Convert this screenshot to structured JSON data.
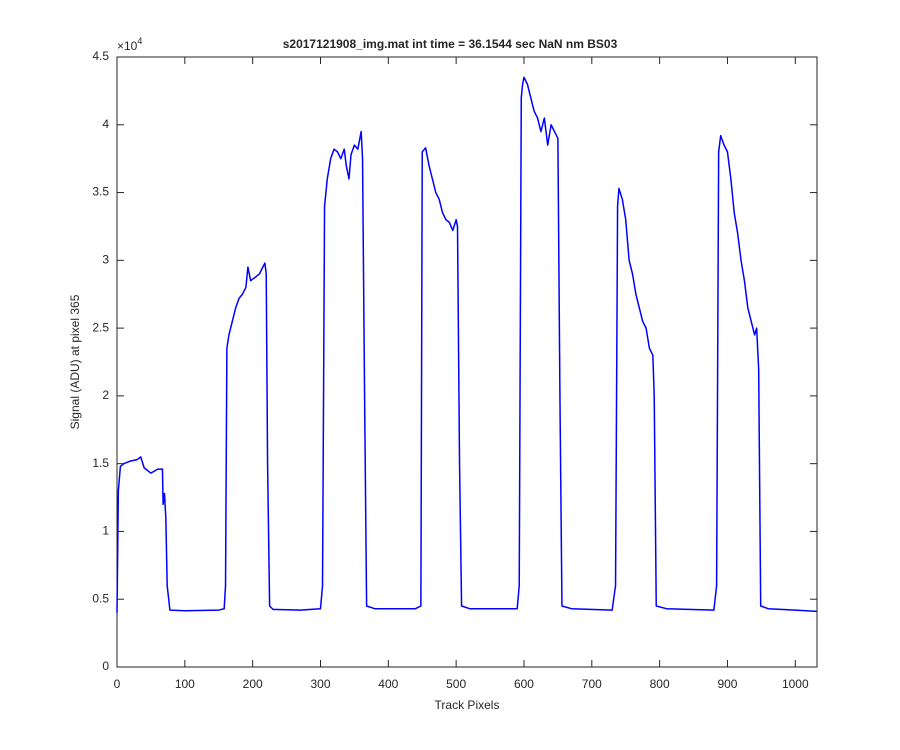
{
  "chart_data": {
    "type": "line",
    "title": "s2017121908_img.mat int time = 36.1544 sec  NaN nm BS03",
    "x_label": "Track Pixels",
    "y_label": "Signal (ADU) at pixel 365",
    "y_multiplier": {
      "base": "×10",
      "exponent": "4"
    },
    "color": "#0000ff",
    "xlim": [
      0,
      1032
    ],
    "ylim": [
      0,
      4.5
    ],
    "xticks": [
      0,
      100,
      200,
      300,
      400,
      500,
      600,
      700,
      800,
      900,
      1000
    ],
    "yticks": [
      0,
      0.5,
      1,
      1.5,
      2,
      2.5,
      3,
      3.5,
      4,
      4.5
    ],
    "x": [
      0,
      2,
      5,
      10,
      20,
      30,
      35,
      40,
      50,
      60,
      67,
      68,
      70,
      72,
      74,
      78,
      100,
      150,
      158,
      160,
      162,
      165,
      170,
      175,
      180,
      185,
      190,
      193,
      197,
      205,
      210,
      215,
      218,
      220,
      222,
      225,
      230,
      270,
      300,
      303,
      306,
      310,
      315,
      320,
      325,
      330,
      335,
      338,
      342,
      345,
      350,
      355,
      360,
      362,
      365,
      368,
      380,
      440,
      448,
      450,
      455,
      460,
      465,
      470,
      475,
      480,
      485,
      490,
      495,
      500,
      502,
      505,
      508,
      520,
      590,
      593,
      596,
      598,
      600,
      605,
      610,
      615,
      620,
      625,
      630,
      635,
      640,
      645,
      650,
      653,
      656,
      670,
      730,
      735,
      738,
      740,
      745,
      750,
      755,
      760,
      765,
      770,
      775,
      780,
      785,
      790,
      792,
      795,
      810,
      880,
      884,
      887,
      890,
      895,
      900,
      905,
      910,
      915,
      920,
      925,
      930,
      935,
      940,
      943,
      946,
      949,
      960,
      1000,
      1032
    ],
    "values": [
      0.4,
      1.3,
      1.48,
      1.5,
      1.52,
      1.53,
      1.55,
      1.47,
      1.43,
      1.46,
      1.46,
      1.2,
      1.28,
      1.1,
      0.6,
      0.42,
      0.415,
      0.42,
      0.43,
      0.6,
      2.35,
      2.45,
      2.55,
      2.65,
      2.72,
      2.75,
      2.8,
      2.95,
      2.85,
      2.88,
      2.9,
      2.95,
      2.98,
      2.9,
      1.5,
      0.45,
      0.425,
      0.42,
      0.43,
      0.6,
      3.4,
      3.6,
      3.75,
      3.82,
      3.8,
      3.75,
      3.82,
      3.7,
      3.6,
      3.78,
      3.85,
      3.82,
      3.95,
      3.75,
      2.0,
      0.45,
      0.43,
      0.43,
      0.45,
      3.8,
      3.83,
      3.7,
      3.6,
      3.5,
      3.45,
      3.35,
      3.3,
      3.28,
      3.22,
      3.3,
      3.25,
      1.5,
      0.45,
      0.43,
      0.43,
      0.6,
      4.2,
      4.3,
      4.35,
      4.3,
      4.2,
      4.1,
      4.05,
      3.95,
      4.05,
      3.85,
      4.0,
      3.95,
      3.9,
      2.0,
      0.45,
      0.43,
      0.42,
      0.6,
      3.4,
      3.53,
      3.45,
      3.3,
      3.0,
      2.9,
      2.75,
      2.65,
      2.55,
      2.5,
      2.35,
      2.3,
      2.0,
      0.45,
      0.43,
      0.42,
      0.6,
      3.8,
      3.92,
      3.85,
      3.8,
      3.6,
      3.35,
      3.2,
      3.0,
      2.85,
      2.65,
      2.55,
      2.45,
      2.5,
      2.2,
      0.45,
      0.43,
      0.42,
      0.41
    ]
  }
}
